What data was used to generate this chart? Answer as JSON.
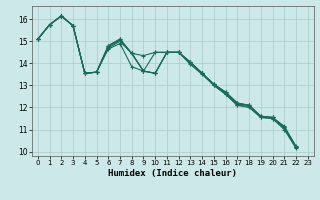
{
  "title": "",
  "xlabel": "Humidex (Indice chaleur)",
  "background_color": "#cce8e8",
  "grid_color": "#aacccc",
  "line_color": "#1a6b5a",
  "xlim": [
    -0.5,
    23.5
  ],
  "ylim": [
    9.8,
    16.6
  ],
  "yticks": [
    10,
    11,
    12,
    13,
    14,
    15,
    16
  ],
  "xticks": [
    0,
    1,
    2,
    3,
    4,
    5,
    6,
    7,
    8,
    9,
    10,
    11,
    12,
    13,
    14,
    15,
    16,
    17,
    18,
    19,
    20,
    21,
    22,
    23
  ],
  "series": [
    [
      15.1,
      15.75,
      16.15,
      15.7,
      13.55,
      13.6,
      14.65,
      14.9,
      13.85,
      13.65,
      14.5,
      14.5,
      14.5,
      13.95,
      13.5,
      13.0,
      12.6,
      12.1,
      12.0,
      11.55,
      11.5,
      11.0,
      10.15
    ],
    [
      15.1,
      15.75,
      16.15,
      15.7,
      13.55,
      13.6,
      14.7,
      15.0,
      14.45,
      14.35,
      14.5,
      14.5,
      14.5,
      14.0,
      13.55,
      13.0,
      12.6,
      12.1,
      12.05,
      11.55,
      11.5,
      11.05,
      10.2
    ],
    [
      15.1,
      15.75,
      16.15,
      15.7,
      13.55,
      13.6,
      14.75,
      15.05,
      14.45,
      13.65,
      13.55,
      14.5,
      14.5,
      14.05,
      13.55,
      13.05,
      12.65,
      12.15,
      12.1,
      11.6,
      11.55,
      11.1,
      10.2
    ],
    [
      15.1,
      15.75,
      16.15,
      15.7,
      13.55,
      13.6,
      14.8,
      15.1,
      14.45,
      13.65,
      13.55,
      14.5,
      14.5,
      14.05,
      13.55,
      13.05,
      12.7,
      12.2,
      12.1,
      11.6,
      11.55,
      11.1,
      10.2
    ],
    [
      15.1,
      15.75,
      16.15,
      15.7,
      13.55,
      13.6,
      14.8,
      15.1,
      14.45,
      13.65,
      13.55,
      14.5,
      14.5,
      14.05,
      13.55,
      13.05,
      12.7,
      12.2,
      12.1,
      11.6,
      11.55,
      11.15,
      10.25
    ]
  ],
  "tick_labelsize": 5.5,
  "xlabel_fontsize": 6.5,
  "marker_size": 3,
  "linewidth": 0.8
}
